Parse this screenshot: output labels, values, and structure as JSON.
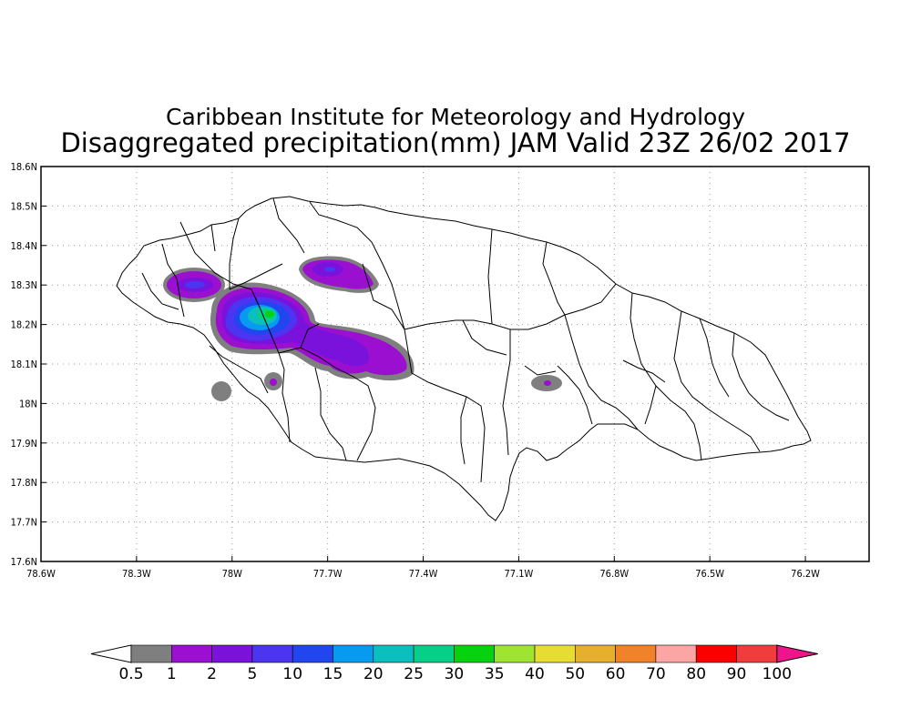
{
  "titles": {
    "line1": "Caribbean Institute for Meteorology and Hydrology",
    "line2": "Disaggregated precipitation(mm) JAM Valid 23Z 26/02 2017"
  },
  "map": {
    "x_ticks": [
      {
        "value": -78.6,
        "label": "78.6W"
      },
      {
        "value": -78.3,
        "label": "78.3W"
      },
      {
        "value": -78.0,
        "label": "78W"
      },
      {
        "value": -77.7,
        "label": "77.7W"
      },
      {
        "value": -77.4,
        "label": "77.4W"
      },
      {
        "value": -77.1,
        "label": "77.1W"
      },
      {
        "value": -76.8,
        "label": "76.8W"
      },
      {
        "value": -76.5,
        "label": "76.5W"
      },
      {
        "value": -76.2,
        "label": "76.2W"
      }
    ],
    "y_ticks": [
      {
        "value": 18.6,
        "label": "18.6N"
      },
      {
        "value": 18.5,
        "label": "18.5N"
      },
      {
        "value": 18.4,
        "label": "18.4N"
      },
      {
        "value": 18.3,
        "label": "18.3N"
      },
      {
        "value": 18.2,
        "label": "18.2N"
      },
      {
        "value": 18.1,
        "label": "18.1N"
      },
      {
        "value": 18.0,
        "label": "18N"
      },
      {
        "value": 17.9,
        "label": "17.9N"
      },
      {
        "value": 17.8,
        "label": "17.8N"
      },
      {
        "value": 17.7,
        "label": "17.7N"
      },
      {
        "value": 17.6,
        "label": "17.6N"
      }
    ],
    "lon_range": [
      -78.6,
      -76.0
    ],
    "lat_range": [
      17.6,
      18.6
    ],
    "grid": "dotted"
  },
  "colorbar": {
    "colors": [
      "#7f7f7f",
      "#9a0fd0",
      "#7a12dc",
      "#4b35f0",
      "#2146f0",
      "#079bf0",
      "#0cbfbf",
      "#06cf8a",
      "#06d20f",
      "#a0e432",
      "#e6dc32",
      "#e6af2d",
      "#f0822a",
      "#fca5a5",
      "#fc0000",
      "#f03c3c"
    ],
    "labels": [
      "0.5",
      "1",
      "2",
      "5",
      "10",
      "15",
      "20",
      "25",
      "30",
      "35",
      "40",
      "50",
      "60",
      "70",
      "80",
      "90",
      "100"
    ],
    "under_color": "#ffffff",
    "over_color": "#f0148c"
  },
  "precip_blobs": [
    {
      "lon": -78.15,
      "lat": 18.3,
      "max_mm": 10
    },
    {
      "lon": -77.88,
      "lat": 18.22,
      "max_mm": 35
    },
    {
      "lon": -77.65,
      "lat": 18.33,
      "max_mm": 5
    },
    {
      "lon": -77.6,
      "lat": 18.14,
      "max_mm": 2
    },
    {
      "lon": -77.48,
      "lat": 18.11,
      "max_mm": 2
    },
    {
      "lon": -77.88,
      "lat": 18.06,
      "max_mm": 1
    },
    {
      "lon": -78.03,
      "lat": 18.03,
      "max_mm": 0.5
    },
    {
      "lon": -76.98,
      "lat": 18.05,
      "max_mm": 1
    }
  ]
}
